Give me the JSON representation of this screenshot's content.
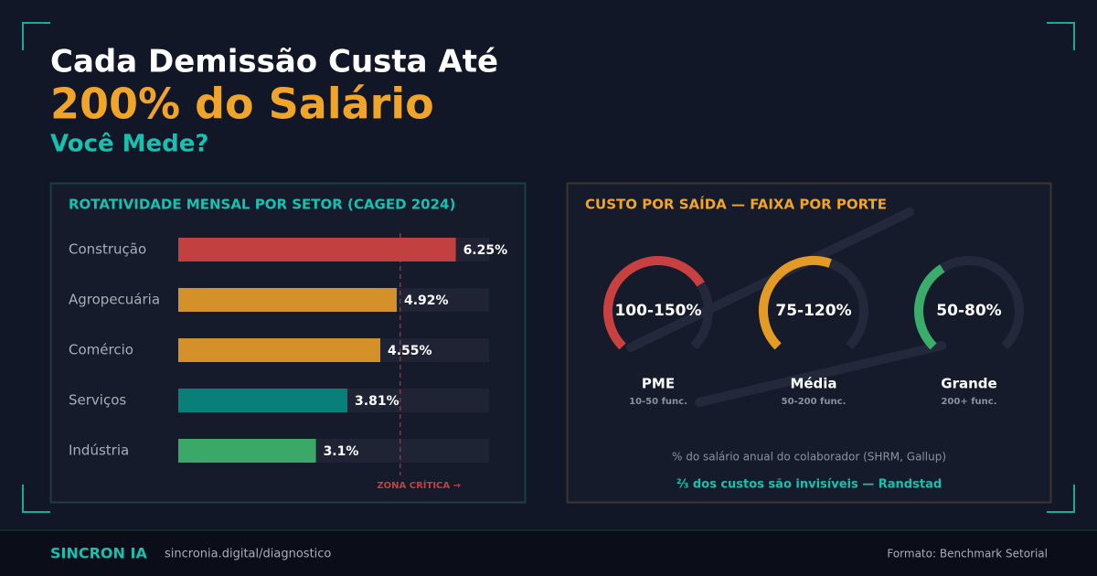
{
  "header": {
    "line1": "Cada Demissão Custa Até",
    "line2": "200% do Salário",
    "line3": "Você Mede?"
  },
  "chart_data": [
    {
      "type": "bar",
      "title": "ROTATIVIDADE MENSAL POR SETOR (CAGED 2024)",
      "categories": [
        "Construção",
        "Agropecuária",
        "Comércio",
        "Serviços",
        "Indústria"
      ],
      "values": [
        6.25,
        4.92,
        4.55,
        3.81,
        3.1
      ],
      "value_labels": [
        "6.25%",
        "4.92%",
        "4.55%",
        "3.81%",
        "3.1%"
      ],
      "colors": [
        "#c24040",
        "#d4912a",
        "#d4912a",
        "#087f78",
        "#3aa866"
      ],
      "xlim": [
        0,
        7
      ],
      "reference_line": {
        "value": 5,
        "label": "ZONA CRÍTICA →"
      }
    },
    {
      "type": "gauge",
      "title": "CUSTO POR SAÍDA — FAIXA POR PORTE",
      "categories": [
        "PME",
        "Média",
        "Grande"
      ],
      "notes": [
        "10-50 func.",
        "50-200 func.",
        "200+ func."
      ],
      "values": [
        150,
        120,
        80
      ],
      "value_labels": [
        "100-150%",
        "75-120%",
        "50-80%"
      ],
      "colors": [
        "#c84040",
        "#e39b25",
        "#3aad6a"
      ],
      "ylim": [
        0,
        210
      ],
      "caption": "% do salário anual do colaborador (SHRM, Gallup)",
      "highlight": "⅔ dos custos são invisíveis — Randstad"
    }
  ],
  "footer": {
    "brand": "SINCRON IA",
    "url": "sincronia.digital/diagnostico",
    "format": "Formato: Benchmark Setorial"
  }
}
